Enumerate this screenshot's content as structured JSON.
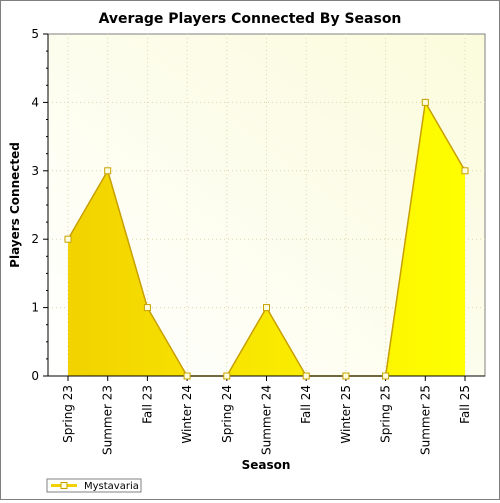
{
  "chart_data": {
    "type": "area",
    "title": "Average Players Connected By Season",
    "xlabel": "Season",
    "ylabel": "Players Connected",
    "categories": [
      "Spring 23",
      "Summer 23",
      "Fall 23",
      "Winter 24",
      "Spring 24",
      "Summer 24",
      "Fall 24",
      "Winter 25",
      "Spring 25",
      "Summer 25",
      "Fall 25"
    ],
    "series": [
      {
        "name": "Mystavaria",
        "values": [
          2,
          3,
          1,
          0,
          0,
          1,
          0,
          0,
          0,
          4,
          3
        ]
      }
    ],
    "ylim": [
      0,
      5
    ],
    "yticks": [
      0,
      1,
      2,
      3,
      4,
      5
    ],
    "grid": true,
    "legend_position": "bottom-left",
    "colors": {
      "fill_light": "#f2d200",
      "fill_bright": "#ffff00",
      "line": "#c8a000",
      "marker_fill": "#ffffe0",
      "plot_bg_light": "#ffffff",
      "plot_bg_dark": "#fbfbdc",
      "grid": "#d8d8b0"
    }
  }
}
